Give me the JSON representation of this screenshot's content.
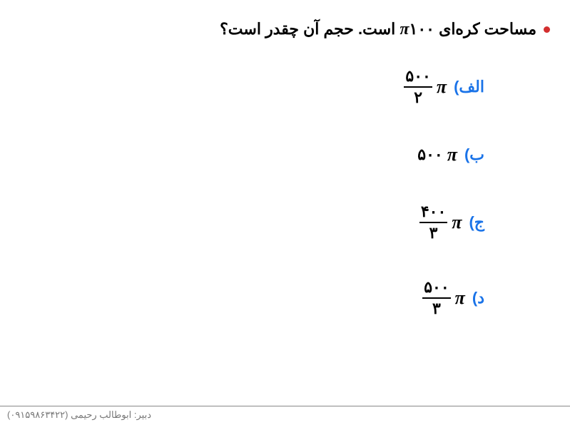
{
  "question": {
    "prefix": "مساحت کره‌ای",
    "value_number": "۱۰۰",
    "value_pi": "π",
    "suffix": "است. حجم آن چقدر است؟"
  },
  "options": {
    "a": {
      "label": "الف)",
      "numerator": "۵۰۰",
      "denominator": "۲",
      "pi": "π",
      "is_fraction": true
    },
    "b": {
      "label": "ب)",
      "number": "۵۰۰",
      "pi": "π",
      "is_fraction": false
    },
    "c": {
      "label": "ج)",
      "numerator": "۴۰۰",
      "denominator": "۳",
      "pi": "π",
      "is_fraction": true
    },
    "d": {
      "label": "د)",
      "numerator": "۵۰۰",
      "denominator": "۳",
      "pi": "π",
      "is_fraction": true
    }
  },
  "footer": {
    "text": "دبیر: ابوطالب رحیمی (۰۹۱۵۹۸۶۳۴۲۲)"
  },
  "colors": {
    "bullet": "#d32f2f",
    "option_label": "#1a73e8",
    "text": "#000000",
    "footer_text": "#777777",
    "divider": "#888888",
    "background": "#ffffff"
  }
}
